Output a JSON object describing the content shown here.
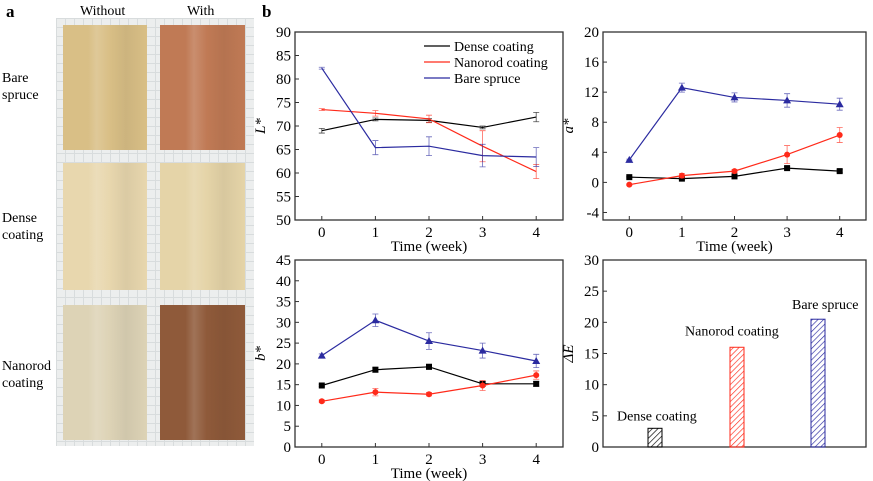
{
  "panel_a": {
    "label": "a",
    "columns": [
      "Without",
      "With"
    ],
    "rows": [
      {
        "label1": "Bare",
        "label2": "spruce",
        "colors": [
          "#d9bf86",
          "#c07a55"
        ]
      },
      {
        "label1": "Dense",
        "label2": "coating",
        "colors": [
          "#e8d7ae",
          "#e5d4a8"
        ]
      },
      {
        "label1": "Nanorod",
        "label2": "coating",
        "colors": [
          "#ddd3b6",
          "#8f5a3a"
        ]
      }
    ]
  },
  "panel_b": {
    "label": "b"
  },
  "colors": {
    "dense": "#000000",
    "nanorod": "#ff2a1a",
    "bare": "#2b2ba0"
  },
  "chart_data": [
    {
      "type": "line",
      "ylabel": "L*",
      "xlabel": "Time (week)",
      "x": [
        0,
        1,
        2,
        3,
        4
      ],
      "xlim": [
        -0.5,
        4.5
      ],
      "ylim": [
        50,
        90
      ],
      "yticks": [
        50,
        55,
        60,
        65,
        70,
        75,
        80,
        85,
        90
      ],
      "legend": "top-right",
      "markers": false,
      "series": [
        {
          "name": "Dense coating",
          "key": "dense",
          "values": [
            69,
            71.4,
            71.2,
            69.7,
            71.9
          ],
          "errors": [
            0.5,
            0.3,
            0.4,
            0.3,
            1
          ]
        },
        {
          "name": "Nanorod coating",
          "key": "nanorod",
          "values": [
            73.5,
            72.7,
            71.5,
            65.7,
            60.3
          ],
          "errors": [
            0.2,
            0.6,
            0.8,
            3.3,
            1.5
          ]
        },
        {
          "name": "Bare spruce",
          "key": "bare",
          "values": [
            82.3,
            65.4,
            65.7,
            63.7,
            63.4
          ],
          "errors": [
            0.2,
            1.5,
            2,
            2.4,
            2
          ]
        }
      ]
    },
    {
      "type": "line",
      "ylabel": "a*",
      "xlabel": "Time (week)",
      "x": [
        0,
        1,
        2,
        3,
        4
      ],
      "xlim": [
        -0.5,
        4.5
      ],
      "ylim": [
        -5,
        20
      ],
      "yticks": [
        -4,
        0,
        4,
        8,
        12,
        16,
        20
      ],
      "markers": true,
      "series": [
        {
          "key": "dense",
          "values": [
            0.7,
            0.5,
            0.8,
            1.9,
            1.5
          ],
          "errors": [
            0.1,
            0.1,
            0.1,
            0.2,
            0.2
          ]
        },
        {
          "key": "nanorod",
          "values": [
            -0.3,
            0.9,
            1.5,
            3.7,
            6.3
          ],
          "errors": [
            0.1,
            0.3,
            0.2,
            1.2,
            1
          ]
        },
        {
          "key": "bare",
          "values": [
            3,
            12.6,
            11.3,
            10.9,
            10.4
          ],
          "errors": [
            0.1,
            0.6,
            0.6,
            0.9,
            0.8
          ]
        }
      ]
    },
    {
      "type": "line",
      "ylabel": "b*",
      "xlabel": "Time (week)",
      "x": [
        0,
        1,
        2,
        3,
        4
      ],
      "xlim": [
        -0.5,
        4.5
      ],
      "ylim": [
        0,
        45
      ],
      "yticks": [
        0,
        5,
        10,
        15,
        20,
        25,
        30,
        35,
        40,
        45
      ],
      "markers": true,
      "series": [
        {
          "key": "dense",
          "values": [
            14.8,
            18.6,
            19.3,
            15.2,
            15.2
          ],
          "errors": [
            0.3,
            0.6,
            0.6,
            0.6,
            0.6
          ]
        },
        {
          "key": "nanorod",
          "values": [
            11,
            13.2,
            12.7,
            14.8,
            17.3
          ],
          "errors": [
            0.3,
            0.9,
            0.4,
            1.2,
            1
          ]
        },
        {
          "key": "bare",
          "values": [
            22,
            30.5,
            25.5,
            23.2,
            20.7
          ],
          "errors": [
            0.4,
            1.5,
            2,
            1.8,
            1.6
          ]
        }
      ]
    },
    {
      "type": "bar",
      "ylabel": "ΔE",
      "ylim": [
        0,
        30
      ],
      "yticks": [
        0,
        5,
        10,
        15,
        20,
        25,
        30
      ],
      "categories": [
        "Dense coating",
        "Nanorod coating",
        "Bare spruce"
      ],
      "keys": [
        "dense",
        "nanorod",
        "bare"
      ],
      "values": [
        3,
        16,
        20.5
      ]
    }
  ]
}
